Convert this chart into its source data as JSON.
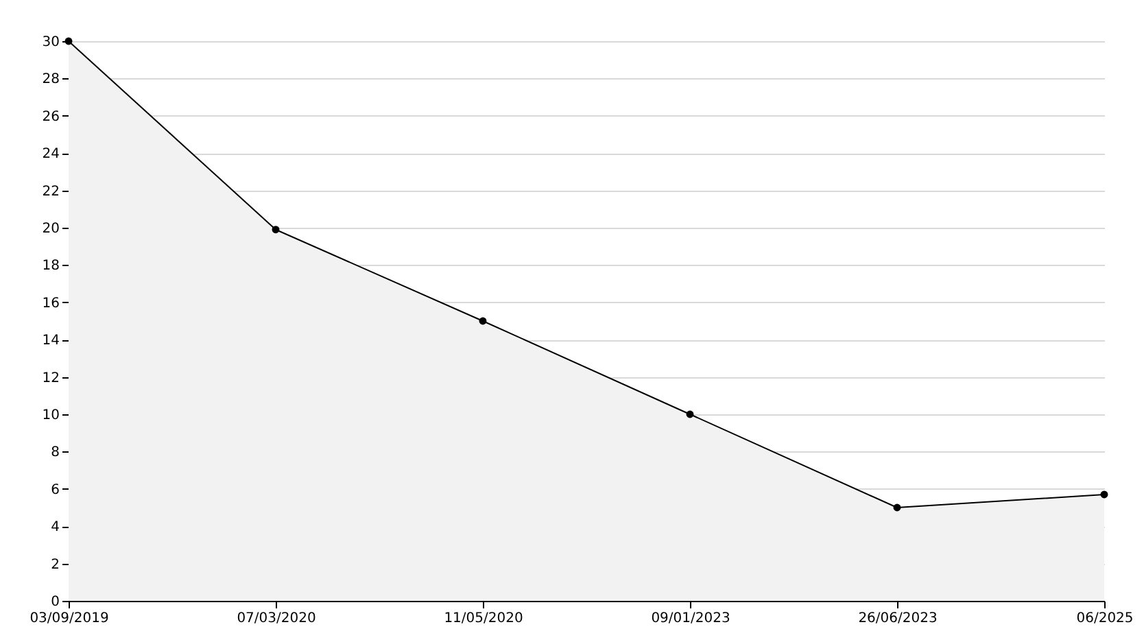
{
  "chart_data": {
    "type": "area",
    "categories": [
      "03/09/2019",
      "07/03/2020",
      "11/05/2020",
      "09/01/2023",
      "26/06/2023",
      "06/2025"
    ],
    "series": [
      {
        "color": "#000000",
        "values": [
          30,
          19.9,
          15,
          10,
          5,
          5.7
        ]
      }
    ],
    "ylim": [
      0,
      30
    ],
    "yticks": [
      0,
      2,
      4,
      6,
      8,
      10,
      12,
      14,
      16,
      18,
      20,
      22,
      24,
      26,
      28,
      30
    ],
    "grid": "y",
    "marker": "circle"
  }
}
